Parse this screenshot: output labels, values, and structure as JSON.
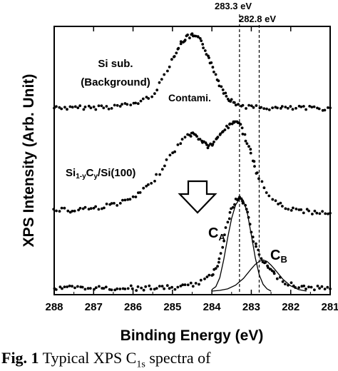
{
  "chart_data": {
    "type": "scatter",
    "title": "",
    "xlabel": "Binding Energy (eV)",
    "ylabel": "XPS Intensity (Arb. Unit)",
    "xlim": [
      288,
      281
    ],
    "x_reversed": true,
    "x_ticks": [
      "288",
      "287",
      "286",
      "285",
      "284",
      "283",
      "282",
      "281"
    ],
    "y_ticks": "none",
    "grid": false,
    "reference_lines": [
      {
        "x": 283.3,
        "label": "283.3 eV"
      },
      {
        "x": 282.8,
        "label": "282.8 eV"
      }
    ],
    "annotations": {
      "si_sub_line1": "Si sub.",
      "si_sub_line2": "(Background)",
      "contami": "Contami.",
      "sicy_parts": [
        "Si",
        "1-y",
        "C",
        "y",
        "/Si(100)"
      ],
      "ca_main": "C",
      "ca_sub": "A",
      "cb_main": "C",
      "cb_sub": "B"
    },
    "series": [
      {
        "id": "si-sub",
        "style": "points",
        "x": [
          288.0,
          287.8,
          287.6,
          287.4,
          287.2,
          287.0,
          286.8,
          286.6,
          286.4,
          286.2,
          286.0,
          285.8,
          285.6,
          285.4,
          285.2,
          285.0,
          284.9,
          284.8,
          284.7,
          284.6,
          284.5,
          284.4,
          284.3,
          284.2,
          284.1,
          284.0,
          283.9,
          283.8,
          283.7,
          283.6,
          283.5,
          283.4,
          283.2,
          283.0,
          282.8,
          282.6,
          282.4,
          282.2,
          282.0,
          281.8,
          281.6,
          281.4,
          281.2,
          281.0
        ],
        "y": [
          0.02,
          0.03,
          0.01,
          0.02,
          0.03,
          0.02,
          0.04,
          0.03,
          0.05,
          0.06,
          0.08,
          0.12,
          0.18,
          0.3,
          0.52,
          0.75,
          0.88,
          0.98,
          1.06,
          1.1,
          1.12,
          1.1,
          1.05,
          0.95,
          0.82,
          0.68,
          0.52,
          0.38,
          0.27,
          0.18,
          0.12,
          0.08,
          0.05,
          0.03,
          0.02,
          0.02,
          0.01,
          0.02,
          0.01,
          0.02,
          0.01,
          0.02,
          0.01,
          0.02
        ]
      },
      {
        "id": "si1-ycy",
        "style": "points",
        "x": [
          288.0,
          287.8,
          287.6,
          287.4,
          287.2,
          287.0,
          286.8,
          286.6,
          286.4,
          286.2,
          286.0,
          285.8,
          285.6,
          285.4,
          285.2,
          285.0,
          284.8,
          284.6,
          284.5,
          284.4,
          284.3,
          284.2,
          284.1,
          284.0,
          283.9,
          283.8,
          283.7,
          283.6,
          283.5,
          283.4,
          283.3,
          283.2,
          283.1,
          283.0,
          282.9,
          282.8,
          282.6,
          282.4,
          282.2,
          282.0,
          281.8,
          281.6,
          281.4,
          281.2,
          281.0
        ],
        "y": [
          0.04,
          0.06,
          0.03,
          0.05,
          0.07,
          0.06,
          0.08,
          0.1,
          0.12,
          0.14,
          0.18,
          0.24,
          0.32,
          0.42,
          0.56,
          0.68,
          0.8,
          0.88,
          0.9,
          0.88,
          0.84,
          0.8,
          0.76,
          0.78,
          0.82,
          0.88,
          0.94,
          0.98,
          1.02,
          1.05,
          1.02,
          0.92,
          0.8,
          0.66,
          0.52,
          0.4,
          0.24,
          0.14,
          0.08,
          0.06,
          0.04,
          0.03,
          0.02,
          0.02,
          0.01
        ]
      },
      {
        "id": "fitted-spectrum",
        "style": "points",
        "x": [
          288.0,
          287.8,
          287.6,
          287.4,
          287.2,
          287.0,
          286.8,
          286.6,
          286.4,
          286.2,
          286.0,
          285.8,
          285.6,
          285.4,
          285.2,
          285.0,
          284.8,
          284.6,
          284.4,
          284.2,
          284.0,
          283.9,
          283.8,
          283.7,
          283.6,
          283.5,
          283.4,
          283.3,
          283.2,
          283.1,
          283.0,
          282.9,
          282.8,
          282.7,
          282.6,
          282.5,
          282.4,
          282.2,
          282.0,
          281.8,
          281.6,
          281.4,
          281.2,
          281.0
        ],
        "y": [
          0.04,
          0.03,
          0.05,
          0.04,
          0.03,
          0.05,
          0.04,
          0.03,
          0.04,
          0.05,
          0.04,
          0.03,
          0.05,
          0.04,
          0.05,
          0.04,
          0.06,
          0.07,
          0.1,
          0.14,
          0.22,
          0.3,
          0.45,
          0.7,
          0.92,
          1.1,
          1.22,
          1.25,
          1.2,
          1.05,
          0.82,
          0.62,
          0.48,
          0.4,
          0.34,
          0.28,
          0.22,
          0.14,
          0.09,
          0.06,
          0.05,
          0.04,
          0.04,
          0.03
        ]
      },
      {
        "id": "peak-ca",
        "style": "line",
        "x": [
          284.0,
          283.9,
          283.8,
          283.7,
          283.6,
          283.5,
          283.4,
          283.3,
          283.25,
          283.2,
          283.1,
          283.0,
          282.9,
          282.8,
          282.7,
          282.6,
          282.5
        ],
        "y": [
          0.02,
          0.06,
          0.18,
          0.42,
          0.72,
          0.98,
          1.16,
          1.24,
          1.25,
          1.22,
          1.05,
          0.76,
          0.45,
          0.22,
          0.09,
          0.03,
          0.0
        ]
      },
      {
        "id": "peak-cb",
        "style": "line",
        "x": [
          284.0,
          283.8,
          283.6,
          283.4,
          283.2,
          283.0,
          282.9,
          282.8,
          282.7,
          282.6,
          282.5,
          282.4,
          282.2,
          282.0,
          281.8,
          281.6
        ],
        "y": [
          0.0,
          0.01,
          0.03,
          0.08,
          0.17,
          0.3,
          0.36,
          0.4,
          0.42,
          0.4,
          0.35,
          0.29,
          0.16,
          0.07,
          0.02,
          0.0
        ]
      }
    ]
  },
  "caption": {
    "fig_label": "Fig. 1",
    "text_before": " Typical XPS C",
    "text_sub": "1s",
    "text_after": " spectra of"
  }
}
